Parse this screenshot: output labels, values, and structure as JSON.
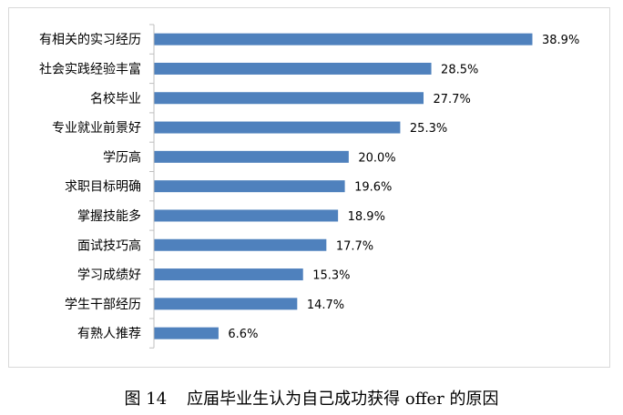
{
  "caption": {
    "number": "图 14",
    "text": "应届毕业生认为自己成功获得 offer 的原因"
  },
  "colors": {
    "bar": "#4f81bd",
    "axis": "#bfbfbf",
    "text": "#000000"
  },
  "chart_data": {
    "type": "bar",
    "orientation": "horizontal",
    "title": "",
    "xlabel": "",
    "ylabel": "",
    "grid": false,
    "xlim": [
      0,
      45
    ],
    "value_suffix": "%",
    "categories": [
      "有相关的实习经历",
      "社会实践经验丰富",
      "名校毕业",
      "专业就业前景好",
      "学历高",
      "求职目标明确",
      "掌握技能多",
      "面试技巧高",
      "学习成绩好",
      "学生干部经历",
      "有熟人推荐"
    ],
    "values": [
      38.9,
      28.5,
      27.7,
      25.3,
      20.0,
      19.6,
      18.9,
      17.7,
      15.3,
      14.7,
      6.6
    ],
    "data_labels": [
      "38.9%",
      "28.5%",
      "27.7%",
      "25.3%",
      "20.0%",
      "19.6%",
      "18.9%",
      "17.7%",
      "15.3%",
      "14.7%",
      "6.6%"
    ]
  }
}
